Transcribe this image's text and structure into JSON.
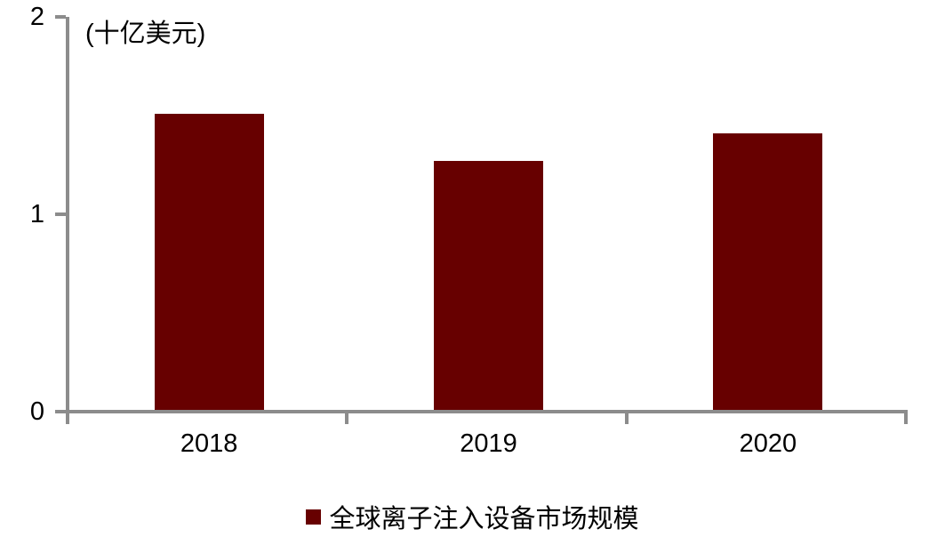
{
  "chart_data": {
    "type": "bar",
    "title": "",
    "unit_label": "(十亿美元)",
    "categories": [
      "2018",
      "2019",
      "2020"
    ],
    "series": [
      {
        "name": "全球离子注入设备市场规模",
        "values": [
          1.51,
          1.27,
          1.41
        ]
      }
    ],
    "xlabel": "",
    "ylabel": "",
    "ylim": [
      0,
      2
    ],
    "yticks": [
      0,
      1,
      2
    ],
    "grid": "off",
    "legend_position": "bottom-center",
    "legend": "全球离子注入设备市场规模",
    "bar_color": "#670000",
    "axis_color": "#8C8C8C",
    "text_color": "#000000"
  }
}
